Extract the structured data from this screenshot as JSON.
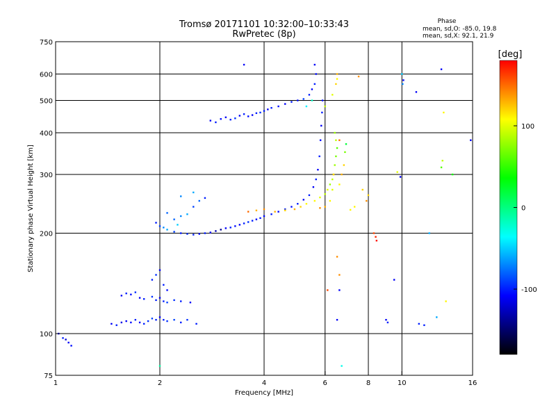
{
  "title": "Tromsø 20171101 10:32:00–10:33:43",
  "subtitle": "RwPretec (8p)",
  "phase_stats": {
    "heading": "Phase",
    "line_o": "mean, sd,O: -85.0, 19.8",
    "line_x": "mean, sd,X:  92.1, 21.9"
  },
  "chart_data": {
    "type": "scatter",
    "xlabel": "Frequency [MHz]",
    "ylabel": "Stationary phase Virtual Height [km]",
    "xscale": "log",
    "yscale": "log",
    "xlim": [
      1,
      16
    ],
    "ylim": [
      75,
      750
    ],
    "x_ticks": [
      1,
      2,
      4,
      6,
      8,
      10,
      16
    ],
    "y_ticks": [
      75,
      100,
      200,
      300,
      400,
      500,
      600,
      750
    ],
    "x_grid": [
      2,
      4,
      6,
      8,
      10
    ],
    "y_grid": [
      100,
      200,
      300,
      400,
      500,
      600
    ],
    "grid": true,
    "colorbar": {
      "label": "[deg]",
      "range": [
        -180,
        180
      ],
      "ticks": [
        100,
        0,
        -100
      ],
      "stops": [
        "#000000",
        "#0000ff",
        "#00ffff",
        "#00ff00",
        "#ffff00",
        "#ff0000"
      ]
    },
    "point_color_value": "phase in degrees",
    "points": [
      [
        1.02,
        100,
        -110
      ],
      [
        1.05,
        97,
        -100
      ],
      [
        1.07,
        96,
        -120
      ],
      [
        1.09,
        94,
        -110
      ],
      [
        1.11,
        92,
        -105
      ],
      [
        1.45,
        107,
        -110
      ],
      [
        1.5,
        106,
        -100
      ],
      [
        1.55,
        108,
        -115
      ],
      [
        1.6,
        109,
        -110
      ],
      [
        1.65,
        108,
        -105
      ],
      [
        1.7,
        110,
        -100
      ],
      [
        1.75,
        108,
        -110
      ],
      [
        1.8,
        107,
        -100
      ],
      [
        1.85,
        109,
        -95
      ],
      [
        1.9,
        111,
        -90
      ],
      [
        1.95,
        110,
        -100
      ],
      [
        2.0,
        112,
        -110
      ],
      [
        2.05,
        110,
        -100
      ],
      [
        2.1,
        109,
        -95
      ],
      [
        2.2,
        110,
        -90
      ],
      [
        2.3,
        108,
        -100
      ],
      [
        2.4,
        110,
        -95
      ],
      [
        2.55,
        107,
        -100
      ],
      [
        1.55,
        130,
        -110
      ],
      [
        1.6,
        132,
        -100
      ],
      [
        1.65,
        131,
        -105
      ],
      [
        1.7,
        133,
        -95
      ],
      [
        1.75,
        128,
        -110
      ],
      [
        1.8,
        127,
        -100
      ],
      [
        1.9,
        129,
        -95
      ],
      [
        1.95,
        126,
        -100
      ],
      [
        2.0,
        128,
        -110
      ],
      [
        2.05,
        125,
        -100
      ],
      [
        2.1,
        124,
        -90
      ],
      [
        2.2,
        126,
        -95
      ],
      [
        2.3,
        125,
        -100
      ],
      [
        2.45,
        124,
        -110
      ],
      [
        1.9,
        145,
        -100
      ],
      [
        1.95,
        150,
        -95
      ],
      [
        2.0,
        155,
        -110
      ],
      [
        2.05,
        140,
        -100
      ],
      [
        2.1,
        135,
        -105
      ],
      [
        2.0,
        80,
        -10
      ],
      [
        1.95,
        215,
        -100
      ],
      [
        2.0,
        210,
        -90
      ],
      [
        2.05,
        208,
        -70
      ],
      [
        2.1,
        205,
        -60
      ],
      [
        2.2,
        202,
        -90
      ],
      [
        2.3,
        200,
        -100
      ],
      [
        2.4,
        199,
        -95
      ],
      [
        2.5,
        198,
        -100
      ],
      [
        2.6,
        199,
        -105
      ],
      [
        2.7,
        200,
        -100
      ],
      [
        2.8,
        201,
        -110
      ],
      [
        2.9,
        203,
        -130
      ],
      [
        3.0,
        205,
        -140
      ],
      [
        3.1,
        207,
        -110
      ],
      [
        3.2,
        208,
        -100
      ],
      [
        3.3,
        210,
        -105
      ],
      [
        3.4,
        212,
        -110
      ],
      [
        3.5,
        214,
        -100
      ],
      [
        3.6,
        216,
        -95
      ],
      [
        3.7,
        218,
        -100
      ],
      [
        3.8,
        220,
        -110
      ],
      [
        3.9,
        222,
        -100
      ],
      [
        4.0,
        225,
        -105
      ],
      [
        4.2,
        228,
        -100
      ],
      [
        4.4,
        232,
        -110
      ],
      [
        4.6,
        236,
        -100
      ],
      [
        4.8,
        240,
        -105
      ],
      [
        5.0,
        245,
        -100
      ],
      [
        5.2,
        252,
        -110
      ],
      [
        5.4,
        260,
        -100
      ],
      [
        5.55,
        275,
        -110
      ],
      [
        5.65,
        290,
        -100
      ],
      [
        5.72,
        310,
        -110
      ],
      [
        5.78,
        340,
        -100
      ],
      [
        5.82,
        380,
        -105
      ],
      [
        5.85,
        420,
        -110
      ],
      [
        5.88,
        460,
        -100
      ],
      [
        5.9,
        500,
        -105
      ],
      [
        2.2,
        220,
        -80
      ],
      [
        2.3,
        225,
        -70
      ],
      [
        2.4,
        228,
        -60
      ],
      [
        2.5,
        240,
        -90
      ],
      [
        2.6,
        250,
        -80
      ],
      [
        2.7,
        255,
        -100
      ],
      [
        2.5,
        265,
        -60
      ],
      [
        2.3,
        258,
        -70
      ],
      [
        2.1,
        230,
        -80
      ],
      [
        2.25,
        212,
        -50
      ],
      [
        3.6,
        232,
        150
      ],
      [
        3.8,
        234,
        130
      ],
      [
        4.0,
        236,
        140
      ],
      [
        4.3,
        232,
        130
      ],
      [
        4.6,
        234,
        120
      ],
      [
        4.9,
        236,
        130
      ],
      [
        5.1,
        240,
        120
      ],
      [
        5.3,
        245,
        110
      ],
      [
        5.6,
        250,
        110
      ],
      [
        5.8,
        256,
        100
      ],
      [
        6.0,
        262,
        90
      ],
      [
        6.1,
        270,
        100
      ],
      [
        6.2,
        280,
        80
      ],
      [
        6.3,
        290,
        90
      ],
      [
        6.35,
        300,
        100
      ],
      [
        6.4,
        320,
        80
      ],
      [
        6.45,
        340,
        70
      ],
      [
        6.5,
        360,
        60
      ],
      [
        6.45,
        380,
        90
      ],
      [
        6.4,
        400,
        80
      ],
      [
        6.35,
        300,
        120
      ],
      [
        6.3,
        270,
        100
      ],
      [
        6.2,
        250,
        110
      ],
      [
        6.0,
        240,
        130
      ],
      [
        5.8,
        238,
        140
      ],
      [
        6.45,
        560,
        120
      ],
      [
        6.5,
        580,
        110
      ],
      [
        6.5,
        600,
        130
      ],
      [
        6.3,
        520,
        100
      ],
      [
        6.0,
        480,
        90
      ],
      [
        6.6,
        280,
        110
      ],
      [
        6.7,
        300,
        130
      ],
      [
        6.8,
        320,
        120
      ],
      [
        6.85,
        350,
        70
      ],
      [
        6.9,
        370,
        20
      ],
      [
        2.8,
        435,
        -110
      ],
      [
        2.9,
        430,
        -100
      ],
      [
        3.0,
        440,
        -105
      ],
      [
        3.1,
        445,
        -110
      ],
      [
        3.2,
        438,
        -100
      ],
      [
        3.3,
        442,
        -95
      ],
      [
        3.4,
        450,
        -110
      ],
      [
        3.5,
        455,
        -100
      ],
      [
        3.6,
        448,
        -105
      ],
      [
        3.7,
        452,
        -110
      ],
      [
        3.8,
        458,
        -100
      ],
      [
        3.9,
        460,
        -95
      ],
      [
        4.0,
        465,
        -100
      ],
      [
        4.1,
        470,
        -110
      ],
      [
        4.2,
        475,
        -100
      ],
      [
        4.4,
        480,
        -105
      ],
      [
        4.6,
        488,
        -110
      ],
      [
        4.8,
        495,
        -100
      ],
      [
        5.0,
        500,
        -105
      ],
      [
        5.2,
        505,
        -90
      ],
      [
        5.4,
        520,
        -100
      ],
      [
        5.5,
        540,
        -110
      ],
      [
        5.6,
        560,
        -100
      ],
      [
        5.65,
        600,
        -105
      ],
      [
        5.6,
        640,
        -110
      ],
      [
        3.5,
        640,
        -110
      ],
      [
        5.5,
        500,
        -20
      ],
      [
        5.3,
        480,
        -40
      ],
      [
        6.5,
        170,
        140
      ],
      [
        6.6,
        150,
        140
      ],
      [
        6.6,
        135,
        -110
      ],
      [
        6.5,
        110,
        -110
      ],
      [
        6.7,
        80,
        -30
      ],
      [
        6.1,
        135,
        160
      ],
      [
        6.6,
        380,
        150
      ],
      [
        8.3,
        200,
        160
      ],
      [
        8.4,
        195,
        170
      ],
      [
        8.45,
        190,
        175
      ],
      [
        9.0,
        110,
        -110
      ],
      [
        9.1,
        108,
        -100
      ],
      [
        9.5,
        145,
        -110
      ],
      [
        9.7,
        305,
        100
      ],
      [
        9.9,
        295,
        -110
      ],
      [
        10.0,
        600,
        -50
      ],
      [
        10.05,
        560,
        -70
      ],
      [
        10.1,
        575,
        -110
      ],
      [
        11.0,
        530,
        -110
      ],
      [
        11.2,
        107,
        -100
      ],
      [
        11.6,
        106,
        -100
      ],
      [
        12.0,
        200,
        -60
      ],
      [
        12.6,
        112,
        -60
      ],
      [
        13.0,
        620,
        -110
      ],
      [
        13.2,
        460,
        110
      ],
      [
        13.1,
        330,
        90
      ],
      [
        13.0,
        315,
        60
      ],
      [
        13.4,
        125,
        110
      ],
      [
        14.0,
        300,
        40
      ],
      [
        15.8,
        380,
        -110
      ],
      [
        7.1,
        235,
        110
      ],
      [
        7.3,
        240,
        110
      ],
      [
        7.5,
        590,
        140
      ],
      [
        7.7,
        270,
        120
      ],
      [
        7.9,
        250,
        140
      ],
      [
        8.0,
        260,
        120
      ]
    ]
  }
}
